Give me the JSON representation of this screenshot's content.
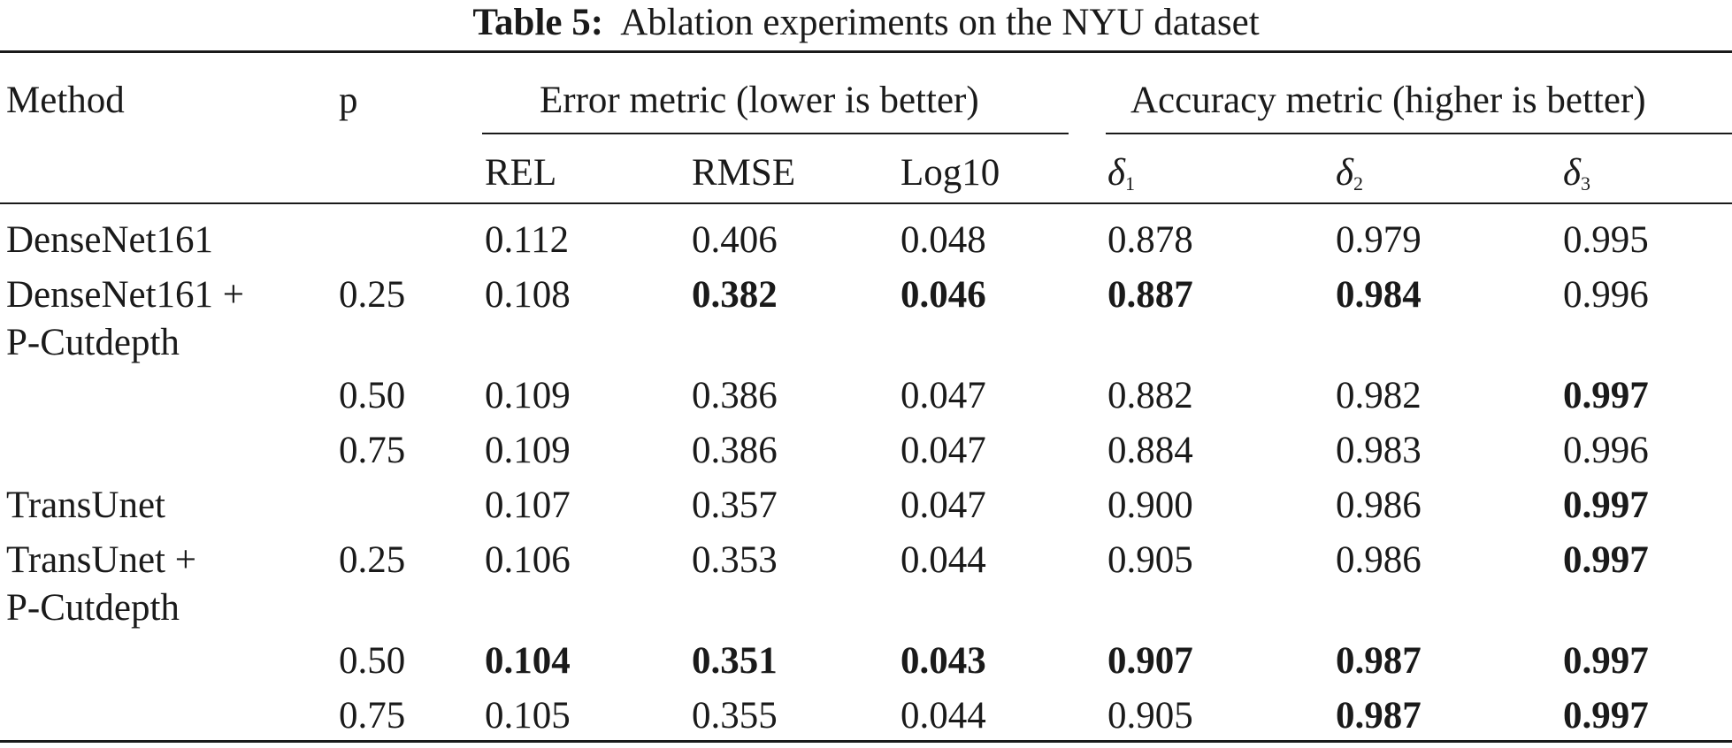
{
  "caption": {
    "label": "Table 5:",
    "text": "Ablation experiments on the NYU dataset"
  },
  "header": {
    "method": "Method",
    "p": "p",
    "error_group": "Error metric (lower is better)",
    "accuracy_group": "Accuracy metric (higher is better)",
    "columns": [
      "REL",
      "RMSE",
      "Log10"
    ],
    "deltas": [
      {
        "symbol": "δ",
        "sub": "1"
      },
      {
        "symbol": "δ",
        "sub": "2"
      },
      {
        "symbol": "δ",
        "sub": "3"
      }
    ]
  },
  "rows": [
    {
      "method": [
        "DenseNet161"
      ],
      "p": "",
      "values": [
        "0.112",
        "0.406",
        "0.048",
        "0.878",
        "0.979",
        "0.995"
      ],
      "bold": [
        false,
        false,
        false,
        false,
        false,
        false
      ]
    },
    {
      "method": [
        "DenseNet161 +",
        "P-Cutdepth"
      ],
      "p": "0.25",
      "values": [
        "0.108",
        "0.382",
        "0.046",
        "0.887",
        "0.984",
        "0.996"
      ],
      "bold": [
        false,
        true,
        true,
        true,
        true,
        false
      ]
    },
    {
      "method": [],
      "p": "0.50",
      "values": [
        "0.109",
        "0.386",
        "0.047",
        "0.882",
        "0.982",
        "0.997"
      ],
      "bold": [
        false,
        false,
        false,
        false,
        false,
        true
      ]
    },
    {
      "method": [],
      "p": "0.75",
      "values": [
        "0.109",
        "0.386",
        "0.047",
        "0.884",
        "0.983",
        "0.996"
      ],
      "bold": [
        false,
        false,
        false,
        false,
        false,
        false
      ]
    },
    {
      "method": [
        "TransUnet"
      ],
      "p": "",
      "values": [
        "0.107",
        "0.357",
        "0.047",
        "0.900",
        "0.986",
        "0.997"
      ],
      "bold": [
        false,
        false,
        false,
        false,
        false,
        true
      ]
    },
    {
      "method": [
        "TransUnet +",
        "P-Cutdepth"
      ],
      "p": "0.25",
      "values": [
        "0.106",
        "0.353",
        "0.044",
        "0.905",
        "0.986",
        "0.997"
      ],
      "bold": [
        false,
        false,
        false,
        false,
        false,
        true
      ]
    },
    {
      "method": [],
      "p": "0.50",
      "values": [
        "0.104",
        "0.351",
        "0.043",
        "0.907",
        "0.987",
        "0.997"
      ],
      "bold": [
        true,
        true,
        true,
        true,
        true,
        true
      ]
    },
    {
      "method": [],
      "p": "0.75",
      "values": [
        "0.105",
        "0.355",
        "0.044",
        "0.905",
        "0.987",
        "0.997"
      ],
      "bold": [
        false,
        false,
        false,
        false,
        true,
        true
      ]
    }
  ]
}
